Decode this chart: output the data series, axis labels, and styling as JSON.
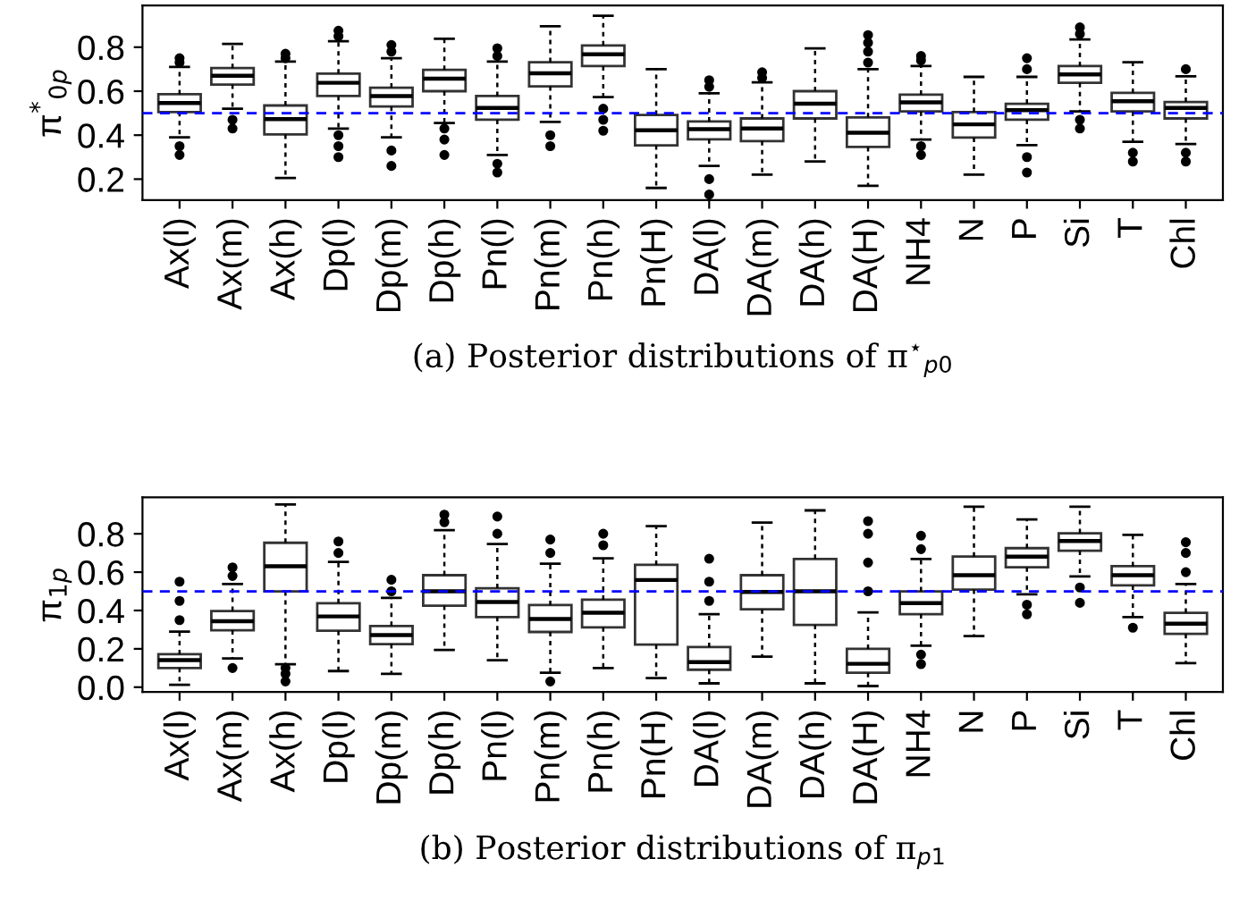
{
  "chart_data": [
    {
      "type": "box",
      "ylabel": "π$^{*}$$_{0p}$",
      "xlabel": "(a) Posterior distributions of π$^{⋆}$$_{p0}$",
      "categories": [
        "Ax(l)",
        "Ax(m)",
        "Ax(h)",
        "Dp(l)",
        "Dp(m)",
        "Dp(h)",
        "Pn(l)",
        "Pn(m)",
        "Pn(h)",
        "Pn(H)",
        "DA(l)",
        "DA(m)",
        "DA(h)",
        "DA(H)",
        "NH4",
        "N",
        "P",
        "Si",
        "T",
        "Chl"
      ],
      "ylim": [
        0.105,
        0.99
      ],
      "yticks": [
        {
          "value": 0.2,
          "label": "0.2"
        },
        {
          "value": 0.4,
          "label": "0.4"
        },
        {
          "value": 0.6,
          "label": "0.6"
        },
        {
          "value": 0.8,
          "label": "0.8"
        }
      ],
      "ref_lines": [
        {
          "axis": "y",
          "value": 0.5,
          "color": "#0000ff",
          "line_style": "dashed"
        }
      ],
      "boxes": [
        {
          "low": 0.39,
          "q1": 0.505,
          "median": 0.546,
          "q3": 0.586,
          "high": 0.71,
          "outliers": [
            0.31,
            0.35,
            0.73,
            0.75
          ]
        },
        {
          "low": 0.52,
          "q1": 0.63,
          "median": 0.67,
          "q3": 0.705,
          "high": 0.815,
          "outliers": [
            0.43,
            0.47
          ]
        },
        {
          "low": 0.205,
          "q1": 0.403,
          "median": 0.473,
          "q3": 0.535,
          "high": 0.735,
          "outliers": [
            0.75,
            0.77
          ]
        },
        {
          "low": 0.43,
          "q1": 0.578,
          "median": 0.638,
          "q3": 0.68,
          "high": 0.827,
          "outliers": [
            0.3,
            0.35,
            0.4,
            0.85,
            0.875
          ]
        },
        {
          "low": 0.39,
          "q1": 0.53,
          "median": 0.578,
          "q3": 0.616,
          "high": 0.75,
          "outliers": [
            0.26,
            0.33,
            0.78,
            0.81
          ]
        },
        {
          "low": 0.455,
          "q1": 0.6,
          "median": 0.657,
          "q3": 0.697,
          "high": 0.838,
          "outliers": [
            0.31,
            0.38,
            0.43
          ]
        },
        {
          "low": 0.31,
          "q1": 0.47,
          "median": 0.524,
          "q3": 0.578,
          "high": 0.735,
          "outliers": [
            0.23,
            0.27,
            0.76,
            0.795
          ]
        },
        {
          "low": 0.46,
          "q1": 0.622,
          "median": 0.681,
          "q3": 0.732,
          "high": 0.895,
          "outliers": [
            0.35,
            0.4
          ]
        },
        {
          "low": 0.573,
          "q1": 0.714,
          "median": 0.768,
          "q3": 0.808,
          "high": 0.943,
          "outliers": [
            0.42,
            0.47,
            0.52
          ]
        },
        {
          "low": 0.16,
          "q1": 0.354,
          "median": 0.422,
          "q3": 0.492,
          "high": 0.7
        },
        {
          "low": 0.26,
          "q1": 0.381,
          "median": 0.427,
          "q3": 0.462,
          "high": 0.59,
          "outliers": [
            0.13,
            0.2,
            0.62,
            0.65
          ]
        },
        {
          "low": 0.22,
          "q1": 0.373,
          "median": 0.43,
          "q3": 0.476,
          "high": 0.64,
          "outliers": [
            0.66,
            0.686
          ]
        },
        {
          "low": 0.28,
          "q1": 0.476,
          "median": 0.543,
          "q3": 0.6,
          "high": 0.795
        },
        {
          "low": 0.17,
          "q1": 0.346,
          "median": 0.411,
          "q3": 0.481,
          "high": 0.7,
          "outliers": [
            0.73,
            0.78,
            0.82,
            0.855
          ]
        },
        {
          "low": 0.38,
          "q1": 0.508,
          "median": 0.549,
          "q3": 0.584,
          "high": 0.714,
          "outliers": [
            0.31,
            0.35,
            0.74,
            0.76
          ]
        },
        {
          "low": 0.22,
          "q1": 0.389,
          "median": 0.449,
          "q3": 0.505,
          "high": 0.665
        },
        {
          "low": 0.355,
          "q1": 0.47,
          "median": 0.514,
          "q3": 0.543,
          "high": 0.665,
          "outliers": [
            0.23,
            0.3,
            0.7,
            0.75
          ]
        },
        {
          "low": 0.508,
          "q1": 0.638,
          "median": 0.676,
          "q3": 0.714,
          "high": 0.835,
          "outliers": [
            0.43,
            0.47,
            0.86,
            0.89
          ]
        },
        {
          "low": 0.37,
          "q1": 0.508,
          "median": 0.554,
          "q3": 0.592,
          "high": 0.732,
          "outliers": [
            0.28,
            0.32
          ]
        },
        {
          "low": 0.36,
          "q1": 0.476,
          "median": 0.524,
          "q3": 0.551,
          "high": 0.668,
          "outliers": [
            0.28,
            0.32,
            0.7
          ]
        }
      ]
    },
    {
      "type": "box",
      "ylabel": "π$_{1p}$",
      "xlabel": "(b) Posterior distributions of π$_{p1}$",
      "categories": [
        "Ax(l)",
        "Ax(m)",
        "Ax(h)",
        "Dp(l)",
        "Dp(m)",
        "Dp(h)",
        "Pn(l)",
        "Pn(m)",
        "Pn(h)",
        "Pn(H)",
        "DA(l)",
        "DA(m)",
        "DA(h)",
        "DA(H)",
        "NH4",
        "N",
        "P",
        "Si",
        "T",
        "Chl"
      ],
      "ylim": [
        -0.025,
        0.99
      ],
      "yticks": [
        {
          "value": 0.0,
          "label": "0.0"
        },
        {
          "value": 0.2,
          "label": "0.2"
        },
        {
          "value": 0.4,
          "label": "0.4"
        },
        {
          "value": 0.6,
          "label": "0.6"
        },
        {
          "value": 0.8,
          "label": "0.8"
        }
      ],
      "ref_lines": [
        {
          "axis": "y",
          "value": 0.5,
          "color": "#0000ff",
          "line_style": "dashed"
        }
      ],
      "boxes": [
        {
          "low": 0.012,
          "q1": 0.1,
          "median": 0.141,
          "q3": 0.172,
          "high": 0.29,
          "outliers": [
            0.35,
            0.45,
            0.55
          ]
        },
        {
          "low": 0.15,
          "q1": 0.297,
          "median": 0.344,
          "q3": 0.397,
          "high": 0.538,
          "outliers": [
            0.1,
            0.58,
            0.625
          ]
        },
        {
          "low": 0.12,
          "q1": 0.5,
          "median": 0.631,
          "q3": 0.753,
          "high": 0.953,
          "outliers": [
            0.03,
            0.07,
            0.1
          ]
        },
        {
          "low": 0.084,
          "q1": 0.294,
          "median": 0.369,
          "q3": 0.438,
          "high": 0.653,
          "outliers": [
            0.7,
            0.76
          ]
        },
        {
          "low": 0.07,
          "q1": 0.225,
          "median": 0.272,
          "q3": 0.319,
          "high": 0.466,
          "outliers": [
            0.5,
            0.56
          ]
        },
        {
          "low": 0.194,
          "q1": 0.425,
          "median": 0.5,
          "q3": 0.584,
          "high": 0.819,
          "outliers": [
            0.86,
            0.9
          ]
        },
        {
          "low": 0.141,
          "q1": 0.366,
          "median": 0.444,
          "q3": 0.516,
          "high": 0.747,
          "outliers": [
            0.8,
            0.89
          ]
        },
        {
          "low": 0.075,
          "q1": 0.288,
          "median": 0.356,
          "q3": 0.428,
          "high": 0.644,
          "outliers": [
            0.03,
            0.7,
            0.77
          ]
        },
        {
          "low": 0.1,
          "q1": 0.312,
          "median": 0.388,
          "q3": 0.456,
          "high": 0.672,
          "outliers": [
            0.74,
            0.8
          ]
        },
        {
          "low": 0.047,
          "q1": 0.222,
          "median": 0.559,
          "q3": 0.638,
          "high": 0.84
        },
        {
          "low": 0.02,
          "q1": 0.091,
          "median": 0.131,
          "q3": 0.209,
          "high": 0.381,
          "outliers": [
            0.45,
            0.55,
            0.67
          ]
        },
        {
          "low": 0.159,
          "q1": 0.406,
          "median": 0.497,
          "q3": 0.584,
          "high": 0.859
        },
        {
          "low": 0.02,
          "q1": 0.325,
          "median": 0.5,
          "q3": 0.669,
          "high": 0.922
        },
        {
          "low": 0.006,
          "q1": 0.075,
          "median": 0.122,
          "q3": 0.2,
          "high": 0.39,
          "outliers": [
            0.5,
            0.65,
            0.8,
            0.866
          ]
        },
        {
          "low": 0.216,
          "q1": 0.381,
          "median": 0.438,
          "q3": 0.5,
          "high": 0.669,
          "outliers": [
            0.12,
            0.17,
            0.72,
            0.79
          ]
        },
        {
          "low": 0.266,
          "q1": 0.509,
          "median": 0.584,
          "q3": 0.681,
          "high": 0.941
        },
        {
          "low": 0.484,
          "q1": 0.625,
          "median": 0.681,
          "q3": 0.725,
          "high": 0.875,
          "outliers": [
            0.38,
            0.43
          ]
        },
        {
          "low": 0.578,
          "q1": 0.712,
          "median": 0.762,
          "q3": 0.803,
          "high": 0.941,
          "outliers": [
            0.44,
            0.52
          ]
        },
        {
          "low": 0.366,
          "q1": 0.531,
          "median": 0.584,
          "q3": 0.631,
          "high": 0.794,
          "outliers": [
            0.31
          ]
        },
        {
          "low": 0.125,
          "q1": 0.278,
          "median": 0.331,
          "q3": 0.388,
          "high": 0.538,
          "outliers": [
            0.6,
            0.7,
            0.756
          ]
        }
      ]
    }
  ]
}
